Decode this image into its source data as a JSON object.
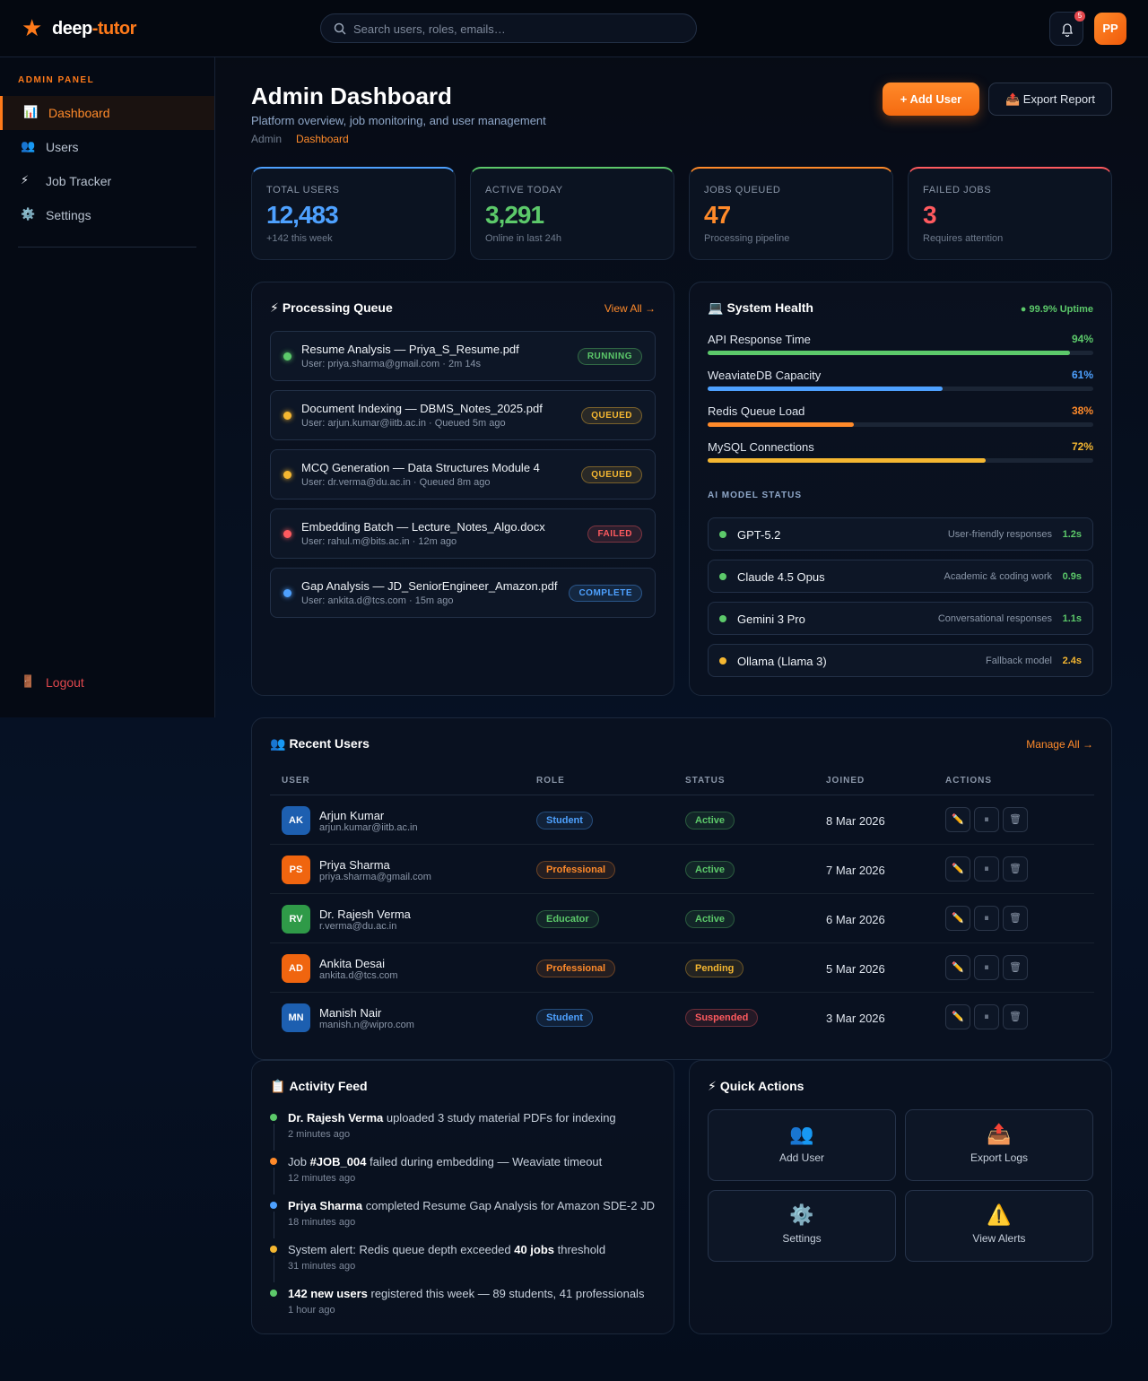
{
  "header": {
    "logo_icon": "★",
    "logo_main": "deep",
    "logo_accent": "-tutor",
    "search_placeholder": "Search users, roles, emails…",
    "notification_count": 5,
    "avatar": "PP"
  },
  "sidebar": {
    "section": "ADMIN PANEL",
    "nav": [
      {
        "icon": "📊",
        "label": "Dashboard",
        "active": true
      },
      {
        "icon": "👥",
        "label": "Users",
        "active": false
      },
      {
        "icon": "⚡",
        "label": "Job Tracker",
        "active": false
      },
      {
        "icon": "⚙️",
        "label": "Settings",
        "active": false
      }
    ],
    "logout": {
      "icon": "🚪",
      "label": "Logout"
    }
  },
  "page": {
    "title": "Admin Dashboard",
    "subtitle": "Platform overview, job monitoring, and user management",
    "breadcrumb": [
      "Admin",
      "Dashboard"
    ],
    "primary_button": "+ Add User",
    "secondary_button": "📤 Export Report"
  },
  "stats": [
    {
      "label": "TOTAL USERS",
      "value": "12,483",
      "note": "+142 this week",
      "color": "#4ea1ff"
    },
    {
      "label": "ACTIVE TODAY",
      "value": "3,291",
      "note": "Online in last 24h",
      "color": "#5cc96a"
    },
    {
      "label": "JOBS QUEUED",
      "value": "47",
      "note": "Processing pipeline",
      "color": "#ff8a2a"
    },
    {
      "label": "FAILED JOBS",
      "value": "3",
      "note": "Requires attention",
      "color": "#ff5a5f"
    }
  ],
  "queue": {
    "icon": "⚡",
    "title": "Processing Queue",
    "link": "View All →",
    "jobs": [
      {
        "title": "Resume Analysis — Priya_S_Resume.pdf",
        "meta": "User: priya.sharma@gmail.com · 2m 14s",
        "status": "RUNNING",
        "color": "#5cc96a"
      },
      {
        "title": "Document Indexing — DBMS_Notes_2025.pdf",
        "meta": "User: arjun.kumar@iitb.ac.in · Queued 5m ago",
        "status": "QUEUED",
        "color": "#f5b731"
      },
      {
        "title": "MCQ Generation — Data Structures Module 4",
        "meta": "User: dr.verma@du.ac.in · Queued 8m ago",
        "status": "QUEUED",
        "color": "#f5b731"
      },
      {
        "title": "Embedding Batch — Lecture_Notes_Algo.docx",
        "meta": "User: rahul.m@bits.ac.in · 12m ago",
        "status": "FAILED",
        "color": "#ff5a5f"
      },
      {
        "title": "Gap Analysis — JD_SeniorEngineer_Amazon.pdf",
        "meta": "User: ankita.d@tcs.com · 15m ago",
        "status": "COMPLETE",
        "color": "#4ea1ff"
      }
    ]
  },
  "health": {
    "icon": "💻",
    "title": "System Health",
    "uptime": "● 99.9% Uptime",
    "metrics": [
      {
        "name": "API Response Time",
        "value": 94,
        "label": "94%",
        "color": "#5cc96a"
      },
      {
        "name": "WeaviateDB Capacity",
        "value": 61,
        "label": "61%",
        "color": "#4ea1ff"
      },
      {
        "name": "Redis Queue Load",
        "value": 38,
        "label": "38%",
        "color": "#ff8a2a"
      },
      {
        "name": "MySQL Connections",
        "value": 72,
        "label": "72%",
        "color": "#f5b731"
      }
    ],
    "models_title": "AI MODEL STATUS",
    "models": [
      {
        "name": "GPT-5.2",
        "desc": "User-friendly responses",
        "latency": "1.2s",
        "color": "#5cc96a"
      },
      {
        "name": "Claude 4.5 Opus",
        "desc": "Academic & coding work",
        "latency": "0.9s",
        "color": "#5cc96a"
      },
      {
        "name": "Gemini 3 Pro",
        "desc": "Conversational responses",
        "latency": "1.1s",
        "color": "#5cc96a"
      },
      {
        "name": "Ollama (Llama 3)",
        "desc": "Fallback model",
        "latency": "2.4s",
        "color": "#f5b731"
      }
    ]
  },
  "users": {
    "icon": "👥",
    "title": "Recent Users",
    "link": "Manage All →",
    "columns": [
      "USER",
      "ROLE",
      "STATUS",
      "JOINED",
      "ACTIONS"
    ],
    "action_icons": [
      "✏️",
      "⏸",
      "🗑"
    ],
    "rows": [
      {
        "initials": "AK",
        "avatar_color": "#1d5fb0",
        "name": "Arjun Kumar",
        "email": "arjun.kumar@iitb.ac.in",
        "role": "Student",
        "role_color": "#4ea1ff",
        "status": "Active",
        "status_color": "#5cc96a",
        "joined": "8 Mar 2026"
      },
      {
        "initials": "PS",
        "avatar_color": "#f0650f",
        "name": "Priya Sharma",
        "email": "priya.sharma@gmail.com",
        "role": "Professional",
        "role_color": "#ff8a2a",
        "status": "Active",
        "status_color": "#5cc96a",
        "joined": "7 Mar 2026"
      },
      {
        "initials": "RV",
        "avatar_color": "#2f9a48",
        "name": "Dr. Rajesh Verma",
        "email": "r.verma@du.ac.in",
        "role": "Educator",
        "role_color": "#5cc96a",
        "status": "Active",
        "status_color": "#5cc96a",
        "joined": "6 Mar 2026"
      },
      {
        "initials": "AD",
        "avatar_color": "#f0650f",
        "name": "Ankita Desai",
        "email": "ankita.d@tcs.com",
        "role": "Professional",
        "role_color": "#ff8a2a",
        "status": "Pending",
        "status_color": "#f5b731",
        "joined": "5 Mar 2026"
      },
      {
        "initials": "MN",
        "avatar_color": "#1d5fb0",
        "name": "Manish Nair",
        "email": "manish.n@wipro.com",
        "role": "Student",
        "role_color": "#4ea1ff",
        "status": "Suspended",
        "status_color": "#ff5a5f",
        "joined": "3 Mar 2026"
      }
    ]
  },
  "activity": {
    "icon": "📋",
    "title": "Activity Feed",
    "items": [
      {
        "color": "#5cc96a",
        "parts": [
          {
            "text": "Dr. Rajesh Verma",
            "bold": true
          },
          {
            "text": " uploaded 3 study material PDFs for indexing",
            "bold": false
          }
        ],
        "time": "2 minutes ago"
      },
      {
        "color": "#ff8a2a",
        "parts": [
          {
            "text": "Job ",
            "bold": false
          },
          {
            "text": "#JOB_004",
            "bold": true
          },
          {
            "text": " failed during embedding — Weaviate timeout",
            "bold": false
          }
        ],
        "time": "12 minutes ago"
      },
      {
        "color": "#4ea1ff",
        "parts": [
          {
            "text": "Priya Sharma",
            "bold": true
          },
          {
            "text": " completed Resume Gap Analysis for Amazon SDE-2 JD",
            "bold": false
          }
        ],
        "time": "18 minutes ago"
      },
      {
        "color": "#f5b731",
        "parts": [
          {
            "text": "System alert: Redis queue depth exceeded ",
            "bold": false
          },
          {
            "text": "40 jobs",
            "bold": true
          },
          {
            "text": " threshold",
            "bold": false
          }
        ],
        "time": "31 minutes ago"
      },
      {
        "color": "#5cc96a",
        "parts": [
          {
            "text": "142 new users",
            "bold": true
          },
          {
            "text": " registered this week — 89 students, 41 professionals",
            "bold": false
          }
        ],
        "time": "1 hour ago"
      }
    ]
  },
  "quick_actions": {
    "icon": "⚡",
    "title": "Quick Actions",
    "items": [
      {
        "icon": "👥",
        "label": "Add User"
      },
      {
        "icon": "📤",
        "label": "Export Logs"
      },
      {
        "icon": "⚙️",
        "label": "Settings"
      },
      {
        "icon": "⚠️",
        "label": "View Alerts"
      }
    ]
  }
}
